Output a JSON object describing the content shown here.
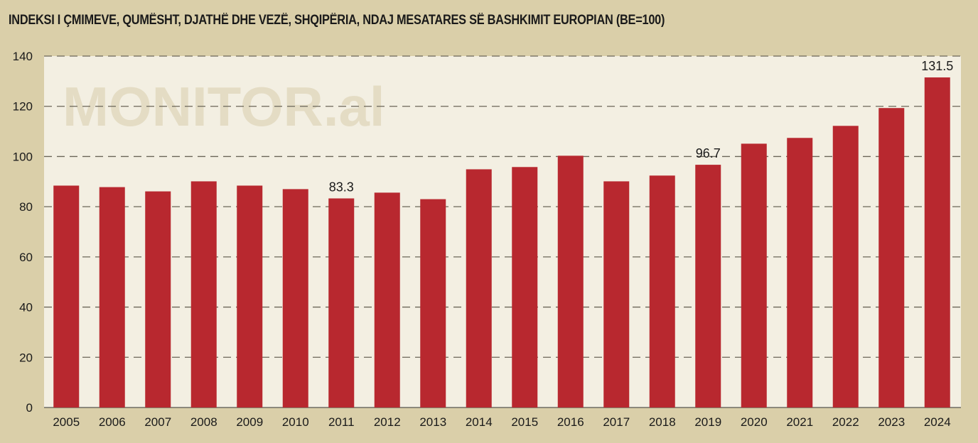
{
  "chart_data": {
    "type": "bar",
    "title": "INDEKSI I ÇMIMEVE, QUMËSHT, DJATHË DHE VEZË, SHQIPËRIA, NDAJ MESATARES SË BASHKIMIT EUROPIAN (BE=100)",
    "watermark": "MONITOR.al",
    "categories": [
      "2005",
      "2006",
      "2007",
      "2008",
      "2009",
      "2010",
      "2011",
      "2012",
      "2013",
      "2014",
      "2015",
      "2016",
      "2017",
      "2018",
      "2019",
      "2020",
      "2021",
      "2022",
      "2023",
      "2024"
    ],
    "values": [
      88.4,
      87.8,
      86.1,
      90.1,
      88.4,
      87.0,
      83.3,
      85.6,
      83.0,
      94.9,
      95.8,
      100.3,
      90.1,
      92.4,
      96.7,
      105.1,
      107.4,
      112.2,
      119.3,
      131.5
    ],
    "data_labels": {
      "2011": "83.3",
      "2019": "96.7",
      "2024": "131.5"
    },
    "yticks": [
      0,
      20,
      40,
      60,
      80,
      100,
      120,
      140
    ],
    "ylim": [
      0,
      140
    ],
    "xlabel": "",
    "ylabel": "",
    "grid": true,
    "bar_color": "#b8282f"
  }
}
